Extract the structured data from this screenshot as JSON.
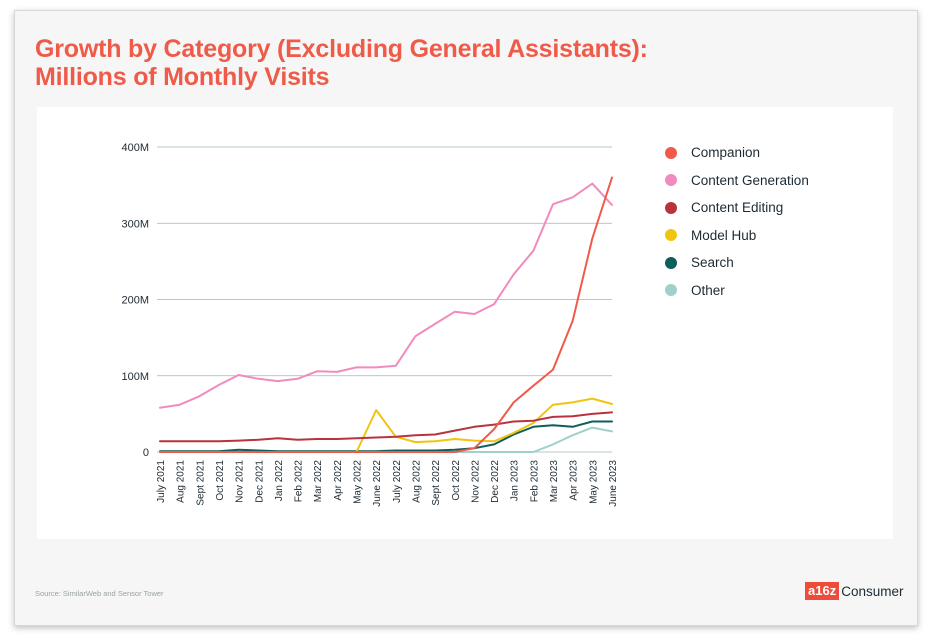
{
  "title_line1": "Growth by Category (Excluding General Assistants):",
  "title_line2": "Millions of Monthly Visits",
  "source": "Source: SimilarWeb and Sensor Tower",
  "logo": {
    "brand": "a16z",
    "suffix": "Consumer",
    "brand_color": "#ef4b3a"
  },
  "chart_data": {
    "type": "line",
    "title": "",
    "xlabel": "",
    "ylabel": "",
    "ylim": [
      0,
      400
    ],
    "yticks": [
      0,
      100,
      200,
      300,
      400
    ],
    "yticklabels": [
      "0",
      "100M",
      "200M",
      "300M",
      "400M"
    ],
    "grid": true,
    "legend_position": "right",
    "categories": [
      "July 2021",
      "Aug 2021",
      "Sept 2021",
      "Oct 2021",
      "Nov 2021",
      "Dec 2021",
      "Jan 2022",
      "Feb 2022",
      "Mar 2022",
      "Apr 2022",
      "May 2022",
      "June 2022",
      "July 2022",
      "Aug 2022",
      "Sept 2022",
      "Oct 2022",
      "Nov 2022",
      "Dec 2022",
      "Jan 2023",
      "Feb 2023",
      "Mar 2023",
      "Apr 2023",
      "May 2023",
      "June 2023"
    ],
    "series": [
      {
        "name": "Companion",
        "color": "#ef5a49",
        "values": [
          0,
          0,
          0,
          0,
          0,
          0,
          0,
          0,
          0,
          0,
          0,
          0,
          0,
          0,
          0,
          0,
          5,
          30,
          65,
          87,
          108,
          172,
          280,
          360
        ]
      },
      {
        "name": "Content Generation",
        "color": "#f28bbd",
        "values": [
          58,
          62,
          73,
          88,
          101,
          96,
          93,
          96,
          106,
          105,
          111,
          111,
          113,
          152,
          168,
          184,
          181,
          194,
          233,
          264,
          325,
          334,
          352,
          324
        ]
      },
      {
        "name": "Content Editing",
        "color": "#b8333f",
        "values": [
          14,
          14,
          14,
          14,
          15,
          16,
          18,
          16,
          17,
          17,
          18,
          19,
          20,
          22,
          23,
          28,
          33,
          36,
          40,
          41,
          46,
          47,
          50,
          52
        ]
      },
      {
        "name": "Model Hub",
        "color": "#f1c40f",
        "values": [
          0,
          0,
          0,
          0,
          0,
          0,
          0,
          0,
          0,
          0,
          0,
          55,
          20,
          13,
          14,
          17,
          15,
          14,
          25,
          38,
          62,
          65,
          70,
          63
        ]
      },
      {
        "name": "Search",
        "color": "#0e5f5c",
        "values": [
          1,
          1,
          1,
          1,
          3,
          2,
          1,
          1,
          1,
          1,
          1,
          1,
          2,
          2,
          2,
          3,
          5,
          10,
          23,
          33,
          35,
          33,
          40,
          40
        ]
      },
      {
        "name": "Other",
        "color": "#9fd0cc",
        "values": [
          0,
          0,
          0,
          0,
          0,
          0,
          0,
          0,
          0,
          0,
          0,
          0,
          0,
          0,
          0,
          0,
          0,
          0,
          0,
          0,
          10,
          22,
          32,
          27
        ]
      }
    ]
  }
}
